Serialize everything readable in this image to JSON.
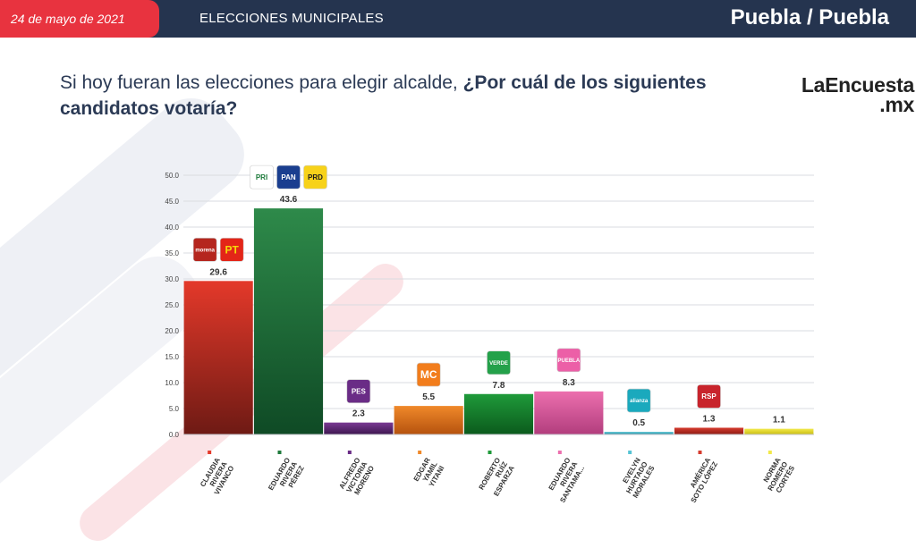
{
  "header": {
    "date": "24 de mayo de 2021",
    "section": "ELECCIONES MUNICIPALES",
    "location": "Puebla / Puebla"
  },
  "question": {
    "lead": "Si hoy fueran las elecciones para elegir alcalde,",
    "main": "¿Por cuál de los siguientes candidatos votaría?"
  },
  "brand": {
    "name": "LaEncuesta",
    "suffix": ".mx"
  },
  "chart_data": {
    "type": "bar",
    "ylim": [
      0,
      50
    ],
    "y_ticks": [
      "0.0",
      "5.0",
      "10.0",
      "15.0",
      "20.0",
      "25.0",
      "30.0",
      "35.0",
      "40.0",
      "45.0",
      "50.0"
    ],
    "grid": true,
    "categories": [
      "CLAUDIA RIVERA VIVANCO",
      "EDUARDO RIVERA PÉREZ",
      "ALFREDO VICTORIA MORENO",
      "EDGAR YAMIL YITANI",
      "ROBERTO RUÍZ ESPARZA",
      "EDUARDO RIVERA SANTAMA...",
      "EVELYN HURTADO MORALES",
      "AMÉRICA SOTO LÓPEZ",
      "NORMA ROMERO CORTÉS"
    ],
    "category_lines": [
      [
        "CLAUDIA",
        "RIVERA",
        "VIVANCO"
      ],
      [
        "EDUARDO",
        "RIVERA",
        "PÉREZ"
      ],
      [
        "ALFREDO",
        "VICTORIA",
        "MORENO"
      ],
      [
        "EDGAR",
        "YAMIL",
        "YITANI"
      ],
      [
        "ROBERTO",
        "RUÍZ",
        "ESPARZA"
      ],
      [
        "EDUARDO",
        "RIVERA",
        "SANTAMA..."
      ],
      [
        "EVELYN",
        "HURTADO",
        "MORALES"
      ],
      [
        "AMÉRICA",
        "SOTO LÓPEZ"
      ],
      [
        "NORMA",
        "ROMERO",
        "CORTÉS"
      ]
    ],
    "values": [
      29.6,
      43.6,
      2.3,
      5.5,
      7.8,
      8.3,
      0.5,
      1.3,
      1.1
    ],
    "value_labels": [
      "29.6",
      "43.6",
      "2.3",
      "5.5",
      "7.8",
      "8.3",
      "0.5",
      "1.3",
      "1.1"
    ],
    "colors": [
      [
        "#e4392a",
        "#6e1a14"
      ],
      [
        "#2e8a4a",
        "#0f4a25"
      ],
      [
        "#7a3a93",
        "#3d1650"
      ],
      [
        "#f0892a",
        "#b5520e"
      ],
      [
        "#1f9a3a",
        "#0b5a1c"
      ],
      [
        "#ec6fae",
        "#b23d7d"
      ],
      [
        "#57c4d4",
        "#2a8fa0"
      ],
      [
        "#d63b2e",
        "#8d1c14"
      ],
      [
        "#f2e94a",
        "#c9bd14"
      ]
    ],
    "legend_marker_colors": [
      "#e4392a",
      "#1f7a3c",
      "#6a2c86",
      "#f0892a",
      "#1f9a3a",
      "#ec6fae",
      "#57c4d4",
      "#d63b2e",
      "#f2e94a"
    ],
    "party_logos": [
      [
        {
          "label": "morena",
          "bg": "#b5261e",
          "fg": "#ffffff"
        },
        {
          "label": "PT",
          "bg": "#e32518",
          "fg": "#f5d90a"
        }
      ],
      [
        {
          "label": "PRI",
          "bg": "#ffffff",
          "fg": "#1c7a3a"
        },
        {
          "label": "PAN",
          "bg": "#1a3e8f",
          "fg": "#ffffff"
        },
        {
          "label": "PRD",
          "bg": "#f7d21a",
          "fg": "#1a1a1a"
        }
      ],
      [
        {
          "label": "PES",
          "bg": "#6a2c86",
          "fg": "#ffffff"
        }
      ],
      [
        {
          "label": "MC",
          "bg": "#f27d1c",
          "fg": "#ffffff"
        }
      ],
      [
        {
          "label": "VERDE",
          "bg": "#24a14a",
          "fg": "#ffffff"
        }
      ],
      [
        {
          "label": "PUEBLA",
          "bg": "#ec5fa7",
          "fg": "#ffffff"
        }
      ],
      [
        {
          "label": "alianza",
          "bg": "#1aa9bd",
          "fg": "#ffffff"
        }
      ],
      [
        {
          "label": "RSP",
          "bg": "#c8242c",
          "fg": "#ffffff"
        }
      ],
      []
    ]
  }
}
